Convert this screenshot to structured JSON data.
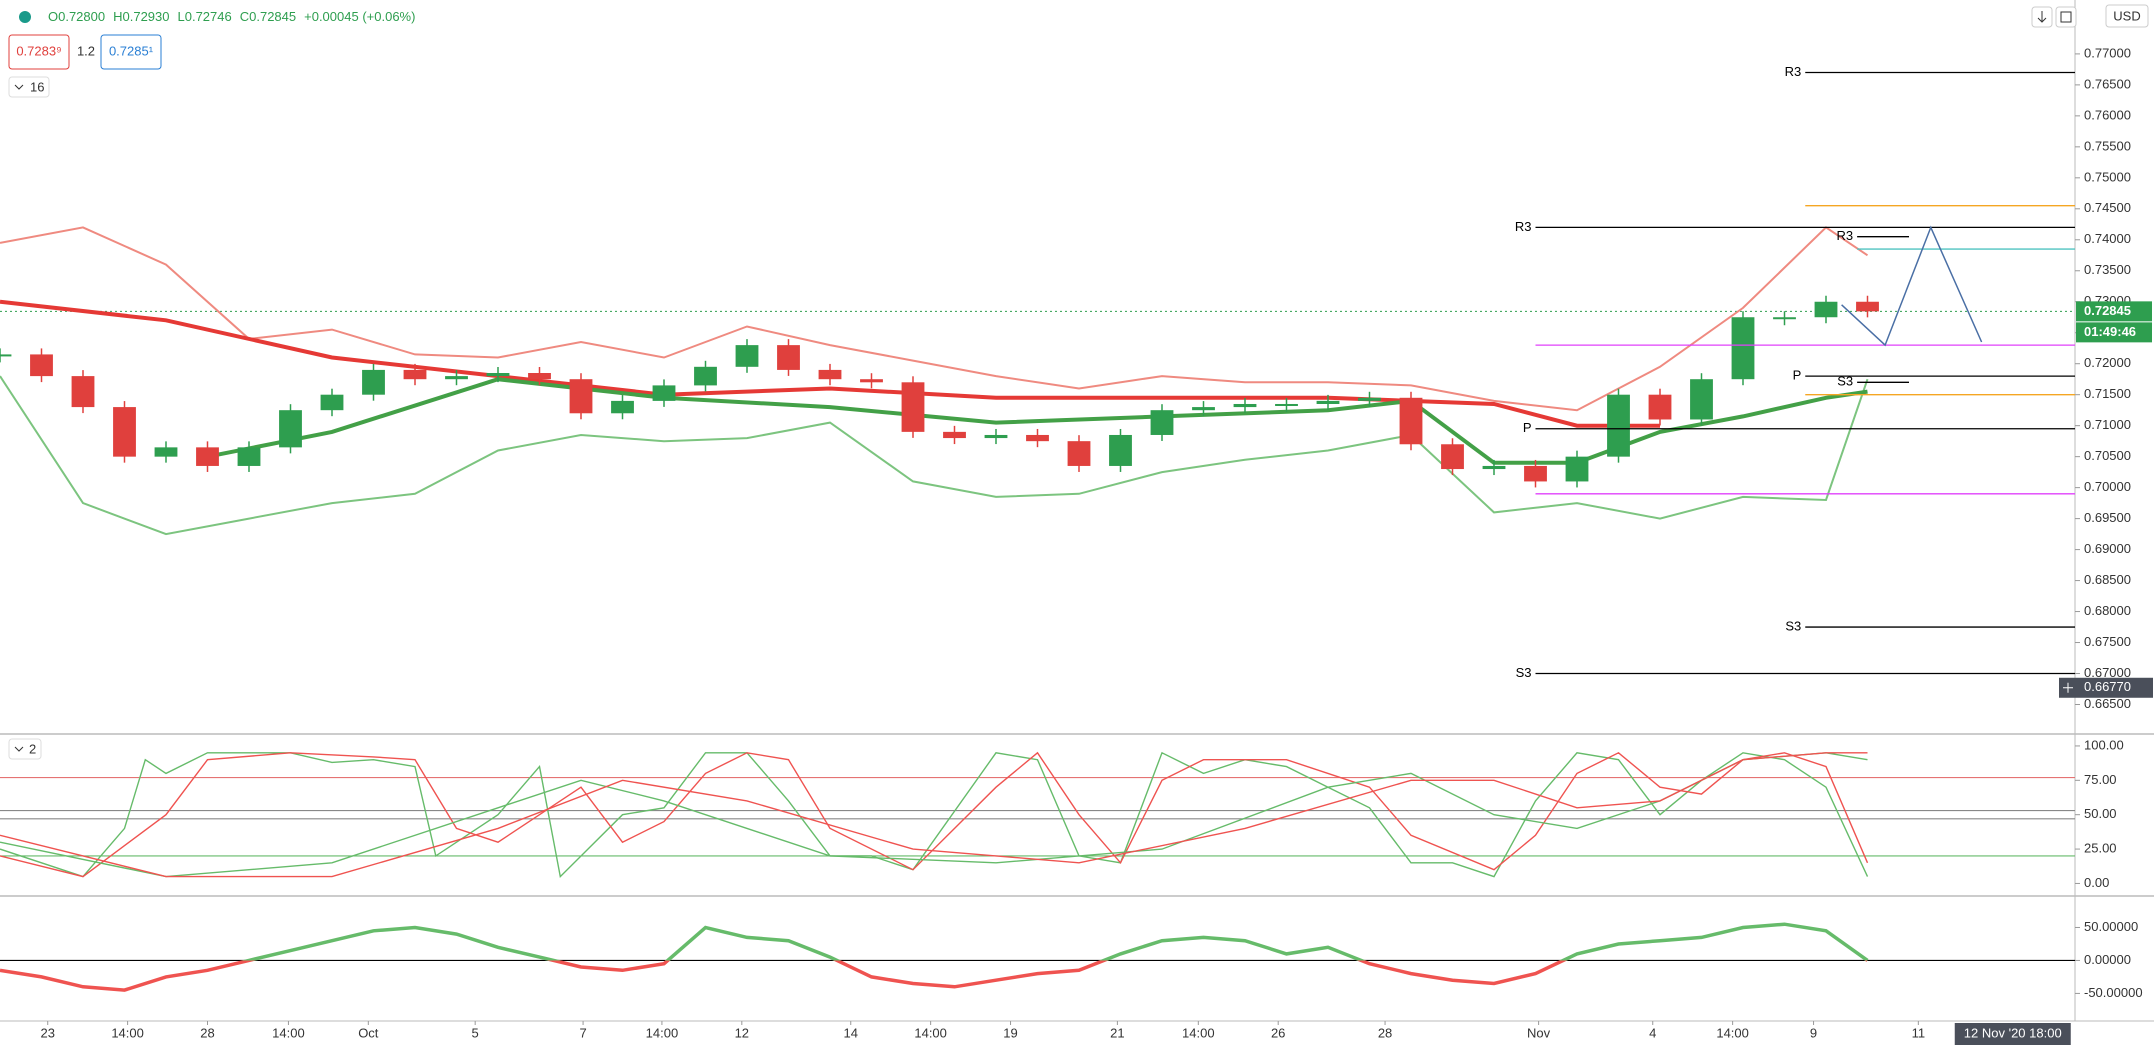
{
  "header": {
    "quote": [
      "O0.72800",
      "H0.72930",
      "L0.72746",
      "C0.72845",
      "+0.00045 (+0.06%)"
    ],
    "sell": "0.7283⁹",
    "lot": "1.2",
    "buy": "0.7285¹",
    "currency": "USD"
  },
  "chart_data": [
    {
      "type": "candlestick",
      "interval_label": "16",
      "xlim": [
        0,
        200
      ],
      "ylim": [
        0.6604,
        0.7787
      ],
      "yticks": [
        {
          "value": 0.665,
          "label": "0.66500"
        },
        {
          "value": 0.67,
          "label": "0.67000"
        },
        {
          "value": 0.675,
          "label": "0.67500"
        },
        {
          "value": 0.68,
          "label": "0.68000"
        },
        {
          "value": 0.685,
          "label": "0.68500"
        },
        {
          "value": 0.69,
          "label": "0.69000"
        },
        {
          "value": 0.695,
          "label": "0.69500"
        },
        {
          "value": 0.7,
          "label": "0.70000"
        },
        {
          "value": 0.705,
          "label": "0.70500"
        },
        {
          "value": 0.71,
          "label": "0.71000"
        },
        {
          "value": 0.715,
          "label": "0.71500"
        },
        {
          "value": 0.72,
          "label": "0.72000"
        },
        {
          "value": 0.725,
          "label": "0.72500"
        },
        {
          "value": 0.73,
          "label": "0.73000"
        },
        {
          "value": 0.735,
          "label": "0.73500"
        },
        {
          "value": 0.74,
          "label": "0.74000"
        },
        {
          "value": 0.745,
          "label": "0.74500"
        },
        {
          "value": 0.75,
          "label": "0.75000"
        },
        {
          "value": 0.755,
          "label": "0.75500"
        },
        {
          "value": 0.76,
          "label": "0.76000"
        },
        {
          "value": 0.765,
          "label": "0.76500"
        },
        {
          "value": 0.77,
          "label": "0.77000"
        }
      ],
      "candles": {
        "up_color": "#2e9e4f",
        "down_color": "#e0403d",
        "x": [
          0,
          4,
          8,
          12,
          16,
          20,
          24,
          28,
          32,
          36,
          40,
          44,
          48,
          52,
          56,
          60,
          64,
          68,
          72,
          76,
          80,
          84,
          88,
          92,
          96,
          100,
          104,
          108,
          112,
          116,
          120,
          124,
          128,
          132,
          136,
          140,
          144,
          148,
          152,
          156,
          160,
          164,
          168,
          172,
          176,
          180
        ],
        "close": [
          0.7215,
          0.718,
          0.713,
          0.705,
          0.7065,
          0.7035,
          0.7065,
          0.7125,
          0.715,
          0.719,
          0.7175,
          0.718,
          0.7185,
          0.7175,
          0.712,
          0.714,
          0.7165,
          0.7195,
          0.723,
          0.719,
          0.7175,
          0.717,
          0.709,
          0.708,
          0.7085,
          0.7075,
          0.7035,
          0.7085,
          0.7125,
          0.713,
          0.7135,
          0.7135,
          0.714,
          0.7145,
          0.707,
          0.703,
          0.7035,
          0.701,
          0.705,
          0.715,
          0.711,
          0.7175,
          0.7275,
          0.7275,
          0.73,
          0.72845
        ]
      },
      "lines": [
        {
          "color": "#ef8a80",
          "width": 2,
          "x": [
            0,
            8,
            16,
            24,
            32,
            40,
            48,
            56,
            64,
            72,
            80,
            88,
            96,
            104,
            112,
            120,
            128,
            136,
            144,
            152,
            160,
            168,
            176,
            180
          ],
          "values": [
            0.7395,
            0.742,
            0.736,
            0.724,
            0.7255,
            0.7215,
            0.721,
            0.7235,
            0.721,
            0.726,
            0.723,
            0.7205,
            0.718,
            0.716,
            0.718,
            0.717,
            0.717,
            0.7165,
            0.714,
            0.7125,
            0.7195,
            0.729,
            0.742,
            0.7375
          ]
        },
        {
          "color": "#7cc47f",
          "width": 2,
          "x": [
            0,
            8,
            16,
            24,
            32,
            40,
            48,
            56,
            64,
            72,
            80,
            88,
            96,
            104,
            112,
            120,
            128,
            136,
            144,
            152,
            160,
            168,
            176,
            180
          ],
          "values": [
            0.718,
            0.6975,
            0.6925,
            0.695,
            0.6975,
            0.699,
            0.706,
            0.7085,
            0.7075,
            0.708,
            0.7105,
            0.701,
            0.6985,
            0.699,
            0.7025,
            0.7045,
            0.706,
            0.7085,
            0.696,
            0.6975,
            0.695,
            0.6985,
            0.698,
            0.7175
          ]
        },
        {
          "color": "#e53935",
          "width": 4,
          "x": [
            0,
            16,
            32,
            48,
            64,
            80,
            96,
            112,
            128,
            144,
            152,
            160
          ],
          "values": [
            0.73,
            0.727,
            0.721,
            0.718,
            0.715,
            0.716,
            0.7145,
            0.7145,
            0.7145,
            0.7135,
            0.71,
            0.71
          ]
        },
        {
          "color": "#43a047",
          "width": 4,
          "x": [
            20,
            32,
            48,
            56,
            64,
            80,
            96,
            112,
            128,
            136,
            144,
            152,
            160,
            168,
            176,
            180
          ],
          "values": [
            0.705,
            0.709,
            0.7175,
            0.716,
            0.7145,
            0.713,
            0.7105,
            0.7115,
            0.7125,
            0.714,
            0.704,
            0.704,
            0.709,
            0.7115,
            0.7145,
            0.7155
          ]
        }
      ],
      "last": 0.72845,
      "countdown": "01:49:46",
      "crosshair": {
        "value": 0.6677,
        "label": "0.66770"
      },
      "levels": [
        {
          "label": "R3",
          "value": 0.767,
          "from": 174,
          "color": "#000000"
        },
        {
          "label": "R3",
          "value": 0.742,
          "from": 148,
          "color": "#000000"
        },
        {
          "label": "R3",
          "value": 0.7405,
          "from": 179,
          "to": 184,
          "color": "#000000"
        },
        {
          "label": "P",
          "value": 0.7095,
          "from": 148,
          "color": "#000000"
        },
        {
          "label": "P",
          "value": 0.718,
          "from": 174,
          "color": "#000000"
        },
        {
          "label": "S3",
          "value": 0.717,
          "from": 179,
          "to": 184,
          "color": "#000000"
        },
        {
          "label": "S3",
          "value": 0.6775,
          "from": 174,
          "color": "#000000"
        },
        {
          "label": "S3",
          "value": 0.67,
          "from": 148,
          "color": "#000000"
        },
        {
          "value": 0.7455,
          "from": 174,
          "color": "#f5a623"
        },
        {
          "value": 0.715,
          "from": 174,
          "color": "#f5a623"
        },
        {
          "value": 0.7385,
          "from": 179,
          "color": "#4fc3c0"
        },
        {
          "value": 0.723,
          "from": 148,
          "color": "#e040fb"
        },
        {
          "value": 0.699,
          "from": 148,
          "color": "#e040fb"
        }
      ],
      "projection": {
        "color": "#4a6fa5",
        "x": [
          177.5,
          181.7,
          186.1,
          191
        ],
        "values": [
          0.7295,
          0.723,
          0.742,
          0.7235
        ]
      }
    },
    {
      "type": "line",
      "panel_label": "2",
      "xlim": [
        0,
        200
      ],
      "ylim": [
        -8.4,
        106.5
      ],
      "yticks": [
        {
          "value": 0,
          "label": "0.00"
        },
        {
          "value": 25,
          "label": "25.00"
        },
        {
          "value": 50,
          "label": "50.00"
        },
        {
          "value": 75,
          "label": "75.00"
        },
        {
          "value": 100,
          "label": "100.00"
        }
      ],
      "hlines": [
        {
          "value": 77,
          "color": "#e57373"
        },
        {
          "value": 53,
          "color": "#888888"
        },
        {
          "value": 47,
          "color": "#888888"
        },
        {
          "value": 20,
          "color": "#66bb6a"
        }
      ],
      "series": [
        {
          "color": "#66bb6a",
          "x": [
            0,
            8,
            12,
            14,
            16,
            20,
            28,
            32,
            36,
            40,
            42,
            48,
            52,
            54,
            60,
            64,
            68,
            72,
            76,
            80,
            84,
            88,
            96,
            100,
            104,
            108,
            112,
            116,
            120,
            124,
            128,
            132,
            136,
            140,
            144,
            148,
            152,
            156,
            160,
            164,
            168,
            172,
            176,
            180
          ],
          "values": [
            25,
            5,
            40,
            90,
            80,
            95,
            95,
            88,
            90,
            85,
            20,
            50,
            85,
            5,
            50,
            55,
            95,
            95,
            60,
            20,
            20,
            10,
            95,
            90,
            20,
            15,
            95,
            80,
            90,
            85,
            70,
            55,
            15,
            15,
            5,
            60,
            95,
            90,
            50,
            75,
            95,
            90,
            70,
            5
          ]
        },
        {
          "color": "#ef5350",
          "x": [
            0,
            8,
            16,
            20,
            28,
            36,
            40,
            44,
            48,
            56,
            60,
            64,
            68,
            72,
            76,
            80,
            88,
            96,
            100,
            104,
            108,
            112,
            116,
            124,
            128,
            132,
            136,
            144,
            148,
            152,
            156,
            160,
            164,
            168,
            172,
            176,
            180
          ],
          "values": [
            20,
            5,
            50,
            90,
            95,
            92,
            90,
            40,
            30,
            70,
            30,
            45,
            80,
            95,
            90,
            40,
            10,
            70,
            95,
            50,
            15,
            75,
            90,
            90,
            80,
            70,
            35,
            10,
            35,
            80,
            95,
            70,
            65,
            90,
            95,
            85,
            15
          ]
        },
        {
          "color": "#66bb6a",
          "x": [
            0,
            16,
            32,
            48,
            56,
            64,
            72,
            80,
            96,
            112,
            128,
            136,
            144,
            152,
            160,
            168,
            176,
            180
          ],
          "values": [
            30,
            5,
            15,
            55,
            75,
            60,
            40,
            20,
            15,
            25,
            70,
            80,
            50,
            40,
            60,
            90,
            95,
            90
          ]
        },
        {
          "color": "#ef5350",
          "x": [
            0,
            16,
            32,
            48,
            60,
            72,
            88,
            104,
            120,
            136,
            144,
            152,
            160,
            168,
            176,
            180
          ],
          "values": [
            35,
            5,
            5,
            40,
            75,
            60,
            25,
            15,
            40,
            75,
            75,
            55,
            60,
            90,
            95,
            95
          ]
        }
      ]
    },
    {
      "type": "line",
      "xlim": [
        0,
        200
      ],
      "ylim": [
        -90.3,
        96.2
      ],
      "yticks": [
        {
          "value": -50,
          "label": "-50.00000"
        },
        {
          "value": 0,
          "label": "0.00000"
        },
        {
          "value": 50,
          "label": "50.00000"
        }
      ],
      "hlines": [
        {
          "value": 0,
          "color": "#000000"
        }
      ],
      "series": [
        {
          "color_up": "#66bb6a",
          "color_down": "#ef5350",
          "x": [
            0,
            4,
            8,
            12,
            16,
            20,
            24,
            28,
            32,
            36,
            40,
            44,
            48,
            52,
            56,
            60,
            64,
            68,
            72,
            76,
            80,
            84,
            88,
            92,
            96,
            100,
            104,
            108,
            112,
            116,
            120,
            124,
            128,
            132,
            136,
            140,
            144,
            148,
            152,
            156,
            160,
            164,
            168,
            172,
            176,
            180
          ],
          "values": [
            -15,
            -25,
            -40,
            -45,
            -25,
            -15,
            0,
            15,
            30,
            45,
            50,
            40,
            20,
            5,
            -10,
            -15,
            -5,
            50,
            35,
            30,
            5,
            -25,
            -35,
            -40,
            -30,
            -20,
            -15,
            10,
            30,
            35,
            30,
            10,
            20,
            -5,
            -20,
            -30,
            -35,
            -20,
            10,
            25,
            30,
            35,
            50,
            55,
            45,
            0
          ]
        }
      ],
      "xticks": [
        {
          "value": 4.6,
          "label": "23"
        },
        {
          "value": 12.3,
          "label": "14:00"
        },
        {
          "value": 20,
          "label": "28"
        },
        {
          "value": 27.8,
          "label": "14:00"
        },
        {
          "value": 35.5,
          "label": "Oct"
        },
        {
          "value": 45.8,
          "label": "5"
        },
        {
          "value": 56.2,
          "label": "7"
        },
        {
          "value": 63.8,
          "label": "14:00"
        },
        {
          "value": 71.5,
          "label": "12"
        },
        {
          "value": 82,
          "label": "14"
        },
        {
          "value": 89.7,
          "label": "14:00"
        },
        {
          "value": 97.4,
          "label": "19"
        },
        {
          "value": 107.7,
          "label": "21"
        },
        {
          "value": 115.5,
          "label": "14:00"
        },
        {
          "value": 123.2,
          "label": "26"
        },
        {
          "value": 133.5,
          "label": "28"
        },
        {
          "value": 148.3,
          "label": "Nov"
        },
        {
          "value": 159.3,
          "label": "4"
        },
        {
          "value": 167,
          "label": "14:00"
        },
        {
          "value": 174.8,
          "label": "9"
        },
        {
          "value": 184.9,
          "label": "11"
        }
      ],
      "crosshair_x": {
        "value": 194,
        "label": "12 Nov '20 18:00"
      }
    }
  ]
}
